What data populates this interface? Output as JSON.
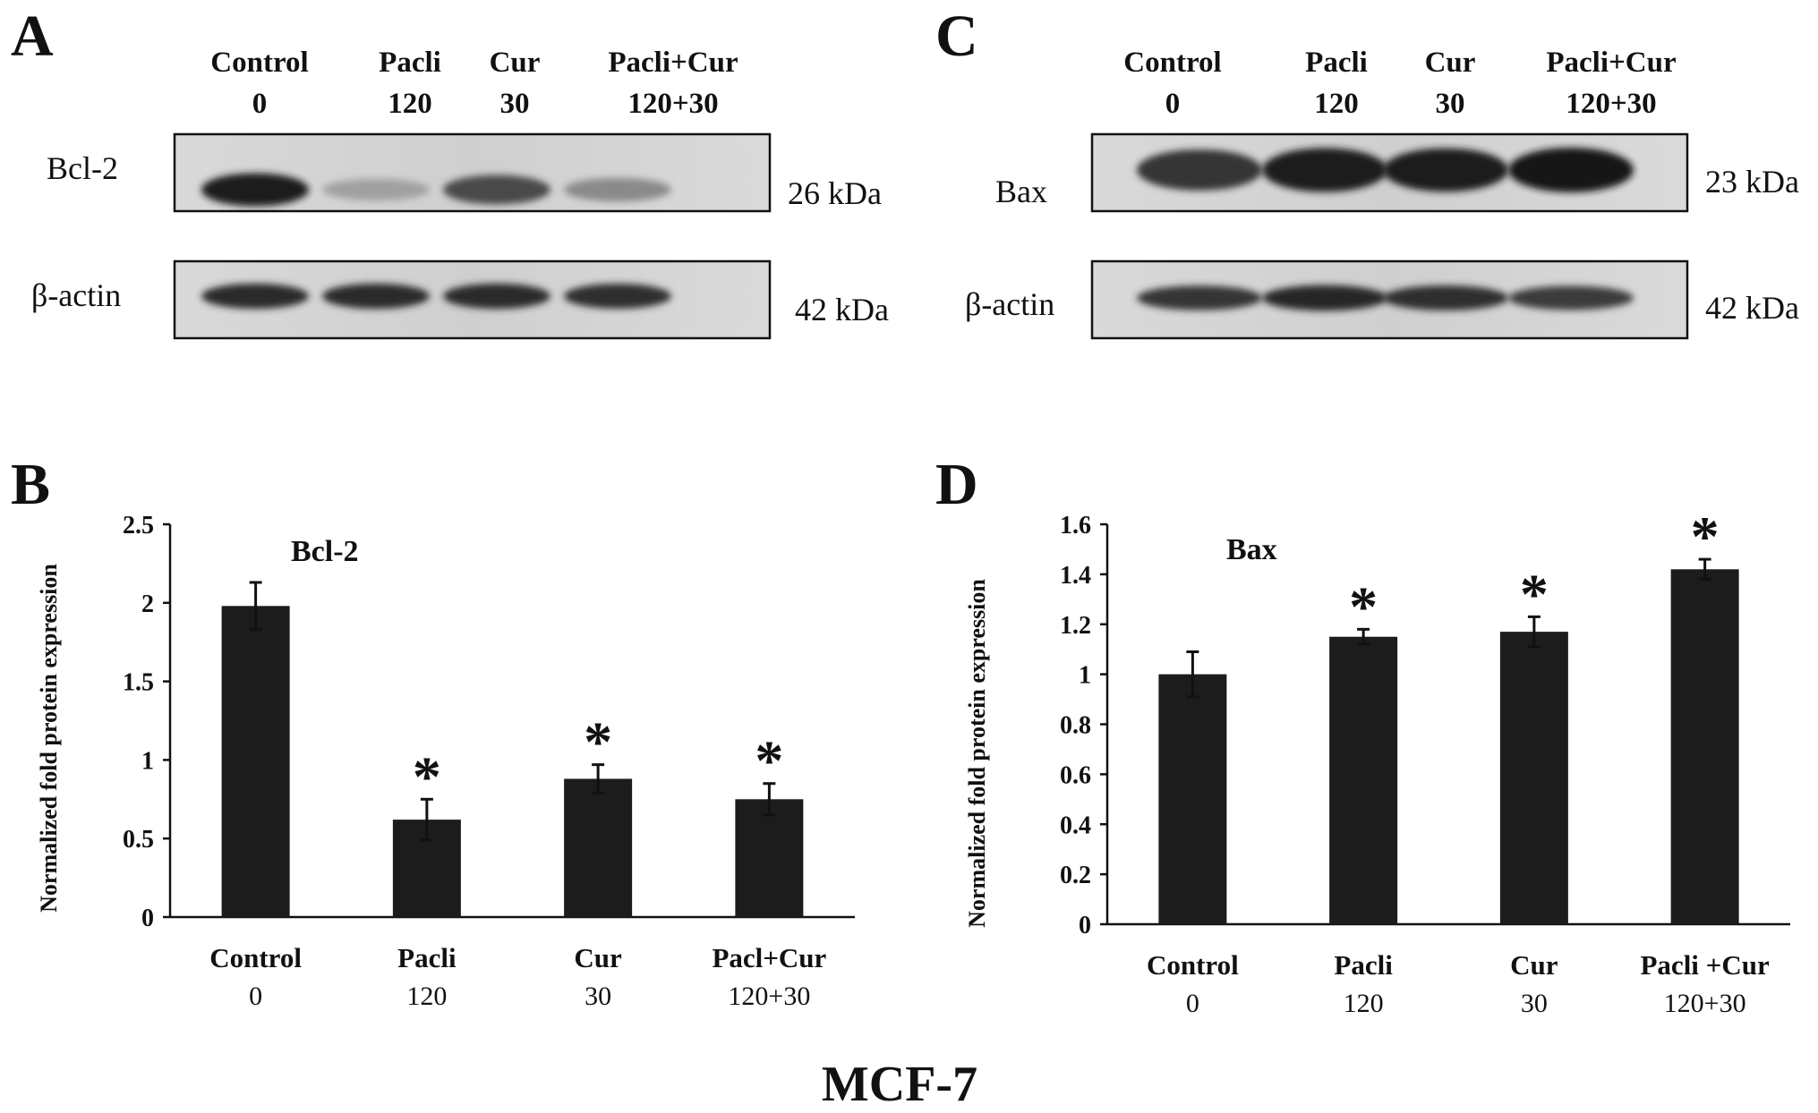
{
  "figure_title": "MCF-7",
  "blots": {
    "A": {
      "letter": "A",
      "lanes": [
        {
          "name": "Control",
          "dose": "0"
        },
        {
          "name": "Pacli",
          "dose": "120"
        },
        {
          "name": "Cur",
          "dose": "30"
        },
        {
          "name": "Pacli+Cur",
          "dose": "120+30"
        }
      ],
      "rows": [
        {
          "label": "Bcl-2",
          "kda": "26 kDa",
          "intensity": [
            0.95,
            0.35,
            0.75,
            0.45
          ]
        },
        {
          "label": "β-actin",
          "kda": "42 kDa",
          "intensity": [
            0.9,
            0.9,
            0.9,
            0.88
          ]
        }
      ]
    },
    "C": {
      "letter": "C",
      "lanes": [
        {
          "name": "Control",
          "dose": "0"
        },
        {
          "name": "Pacli",
          "dose": "120"
        },
        {
          "name": "Cur",
          "dose": "30"
        },
        {
          "name": "Pacli+Cur",
          "dose": "120+30"
        }
      ],
      "rows": [
        {
          "label": "Bax",
          "kda": "23 kDa",
          "intensity": [
            0.85,
            0.97,
            0.95,
            1.0
          ]
        },
        {
          "label": "β-actin",
          "kda": "42 kDa",
          "intensity": [
            0.85,
            0.92,
            0.88,
            0.82
          ]
        }
      ]
    }
  },
  "chart_data": [
    {
      "panel": "B",
      "type": "bar",
      "title": "Bcl-2",
      "ylabel": "Normalized fold protein expression",
      "xlabel": "",
      "categories": [
        "Control",
        "Pacli",
        "Cur",
        "Pacl+Cur"
      ],
      "category_doses": [
        "0",
        "120",
        "30",
        "120+30"
      ],
      "values": [
        1.98,
        0.62,
        0.88,
        0.75
      ],
      "errors": [
        0.15,
        0.13,
        0.09,
        0.1
      ],
      "significant": [
        false,
        true,
        true,
        true
      ],
      "significance_marker": "*",
      "yticks": [
        "0",
        "0.5",
        "1",
        "1.5",
        "2",
        "2.5"
      ],
      "ytick_values": [
        0,
        0.5,
        1,
        1.5,
        2,
        2.5
      ],
      "ylim": [
        0,
        2.5
      ],
      "bar_color": "#1c1c1c",
      "grid": false,
      "legend": "none"
    },
    {
      "panel": "D",
      "type": "bar",
      "title": "Bax",
      "ylabel": "Normalized fold protein expression",
      "xlabel": "",
      "categories": [
        "Control",
        "Pacli",
        "Cur",
        "Pacli +Cur"
      ],
      "category_doses": [
        "0",
        "120",
        "30",
        "120+30"
      ],
      "values": [
        1.0,
        1.15,
        1.17,
        1.42
      ],
      "errors": [
        0.09,
        0.03,
        0.06,
        0.04
      ],
      "significant": [
        false,
        true,
        true,
        true
      ],
      "significance_marker": "*",
      "yticks": [
        "0",
        "0.2",
        "0.4",
        "0.6",
        "0.8",
        "1",
        "1.2",
        "1.4",
        "1.6"
      ],
      "ytick_values": [
        0,
        0.2,
        0.4,
        0.6,
        0.8,
        1.0,
        1.2,
        1.4,
        1.6
      ],
      "ylim": [
        0,
        1.6
      ],
      "bar_color": "#1c1c1c",
      "grid": false,
      "legend": "none"
    }
  ]
}
